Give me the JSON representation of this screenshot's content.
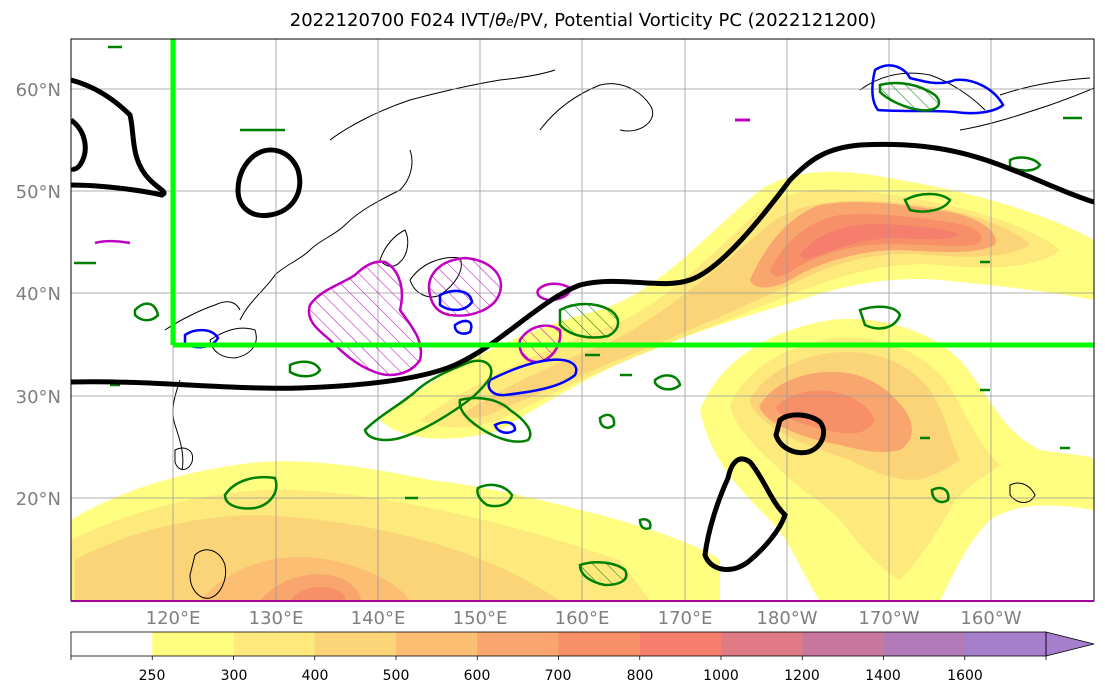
{
  "title": {
    "prefix": "2022120700 F024 IVT/",
    "theta": "θ",
    "theta_sub": "e",
    "suffix": "/PV, Potential Vorticity PC (2022121200)"
  },
  "map": {
    "lat_labels": [
      "60°N",
      "50°N",
      "40°N",
      "30°N",
      "20°N"
    ],
    "lon_labels": [
      "120°E",
      "130°E",
      "140°E",
      "150°E",
      "160°E",
      "170°E",
      "180°W",
      "170°W",
      "160°W"
    ]
  },
  "colorbar": {
    "labels": [
      "250",
      "300",
      "400",
      "500",
      "600",
      "700",
      "800",
      "1000",
      "1200",
      "1400",
      "1600"
    ],
    "colors": [
      "#ffffff",
      "#fffe80",
      "#fde97c",
      "#fcd478",
      "#fbbe73",
      "#f9a66e",
      "#f78f68",
      "#f57f6c",
      "#e07a84",
      "#c8789d",
      "#b07bb8",
      "#a57fcb"
    ]
  },
  "colors": {
    "ivt_shading": "#f9a66e",
    "pv_contour": "#000000",
    "box": "#00ff00",
    "green_contour": "#008000",
    "blue_contour": "#0000ff",
    "magenta_contour": "#c000c0"
  }
}
